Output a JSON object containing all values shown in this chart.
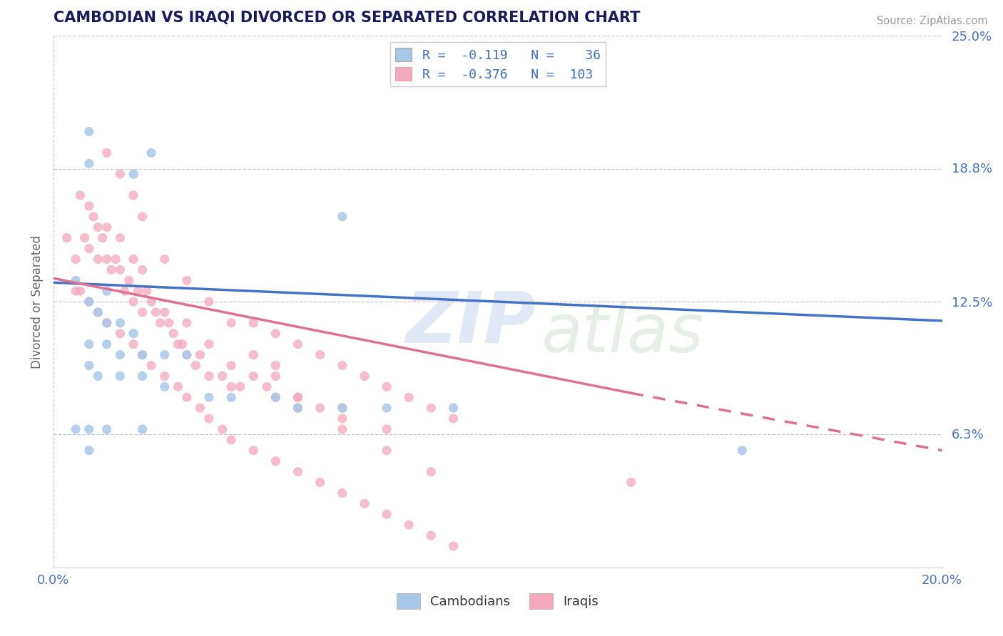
{
  "title": "CAMBODIAN VS IRAQI DIVORCED OR SEPARATED CORRELATION CHART",
  "source": "Source: ZipAtlas.com",
  "ylabel": "Divorced or Separated",
  "r_cambodian": -0.119,
  "n_cambodian": 36,
  "r_iraqi": -0.376,
  "n_iraqi": 103,
  "x_min": 0.0,
  "x_max": 0.2,
  "y_min": 0.0,
  "y_max": 0.25,
  "color_cambodian": "#a8c8e8",
  "color_iraqi": "#f4a8bc",
  "color_line_cambodian": "#4472c4",
  "color_line_iraqi": "#e07090",
  "color_tick_label": "#4472c4",
  "color_title": "#1a1a5e",
  "cam_line_x0": 0.0,
  "cam_line_y0": 0.134,
  "cam_line_x1": 0.2,
  "cam_line_y1": 0.116,
  "irq_line_x0": 0.0,
  "irq_line_y0": 0.136,
  "irq_line_x1_solid": 0.13,
  "irq_line_y1_solid": 0.082,
  "irq_line_x1_dash": 0.2,
  "irq_line_y1_dash": 0.055,
  "cam_points_x": [
    0.008,
    0.022,
    0.008,
    0.018,
    0.005,
    0.012,
    0.008,
    0.01,
    0.012,
    0.015,
    0.018,
    0.008,
    0.012,
    0.015,
    0.02,
    0.025,
    0.03,
    0.008,
    0.01,
    0.015,
    0.02,
    0.025,
    0.035,
    0.04,
    0.05,
    0.055,
    0.065,
    0.075,
    0.09,
    0.155,
    0.005,
    0.008,
    0.012,
    0.02,
    0.065,
    0.008
  ],
  "cam_points_y": [
    0.205,
    0.195,
    0.19,
    0.185,
    0.135,
    0.13,
    0.125,
    0.12,
    0.115,
    0.115,
    0.11,
    0.105,
    0.105,
    0.1,
    0.1,
    0.1,
    0.1,
    0.095,
    0.09,
    0.09,
    0.09,
    0.085,
    0.08,
    0.08,
    0.08,
    0.075,
    0.075,
    0.075,
    0.075,
    0.055,
    0.065,
    0.065,
    0.065,
    0.065,
    0.165,
    0.055
  ],
  "irq_points_x": [
    0.003,
    0.005,
    0.006,
    0.007,
    0.008,
    0.008,
    0.009,
    0.01,
    0.01,
    0.011,
    0.012,
    0.012,
    0.013,
    0.014,
    0.015,
    0.015,
    0.016,
    0.017,
    0.018,
    0.018,
    0.019,
    0.02,
    0.02,
    0.021,
    0.022,
    0.023,
    0.024,
    0.025,
    0.026,
    0.027,
    0.028,
    0.029,
    0.03,
    0.03,
    0.032,
    0.033,
    0.035,
    0.035,
    0.038,
    0.04,
    0.04,
    0.042,
    0.045,
    0.045,
    0.048,
    0.05,
    0.05,
    0.055,
    0.06,
    0.065,
    0.005,
    0.006,
    0.008,
    0.01,
    0.012,
    0.015,
    0.018,
    0.02,
    0.022,
    0.025,
    0.028,
    0.03,
    0.033,
    0.035,
    0.038,
    0.04,
    0.045,
    0.05,
    0.055,
    0.06,
    0.065,
    0.07,
    0.075,
    0.08,
    0.085,
    0.09,
    0.055,
    0.065,
    0.075,
    0.085,
    0.045,
    0.05,
    0.055,
    0.06,
    0.065,
    0.07,
    0.075,
    0.08,
    0.085,
    0.09,
    0.012,
    0.015,
    0.018,
    0.02,
    0.025,
    0.03,
    0.035,
    0.05,
    0.065,
    0.075,
    0.04,
    0.055,
    0.13
  ],
  "irq_points_y": [
    0.155,
    0.145,
    0.175,
    0.155,
    0.15,
    0.17,
    0.165,
    0.145,
    0.16,
    0.155,
    0.145,
    0.16,
    0.14,
    0.145,
    0.155,
    0.14,
    0.13,
    0.135,
    0.125,
    0.145,
    0.13,
    0.12,
    0.14,
    0.13,
    0.125,
    0.12,
    0.115,
    0.12,
    0.115,
    0.11,
    0.105,
    0.105,
    0.1,
    0.115,
    0.095,
    0.1,
    0.09,
    0.105,
    0.09,
    0.085,
    0.095,
    0.085,
    0.09,
    0.1,
    0.085,
    0.08,
    0.09,
    0.08,
    0.075,
    0.07,
    0.13,
    0.13,
    0.125,
    0.12,
    0.115,
    0.11,
    0.105,
    0.1,
    0.095,
    0.09,
    0.085,
    0.08,
    0.075,
    0.07,
    0.065,
    0.06,
    0.055,
    0.05,
    0.045,
    0.04,
    0.035,
    0.03,
    0.025,
    0.02,
    0.015,
    0.01,
    0.075,
    0.065,
    0.055,
    0.045,
    0.115,
    0.11,
    0.105,
    0.1,
    0.095,
    0.09,
    0.085,
    0.08,
    0.075,
    0.07,
    0.195,
    0.185,
    0.175,
    0.165,
    0.145,
    0.135,
    0.125,
    0.095,
    0.075,
    0.065,
    0.115,
    0.08,
    0.04
  ]
}
